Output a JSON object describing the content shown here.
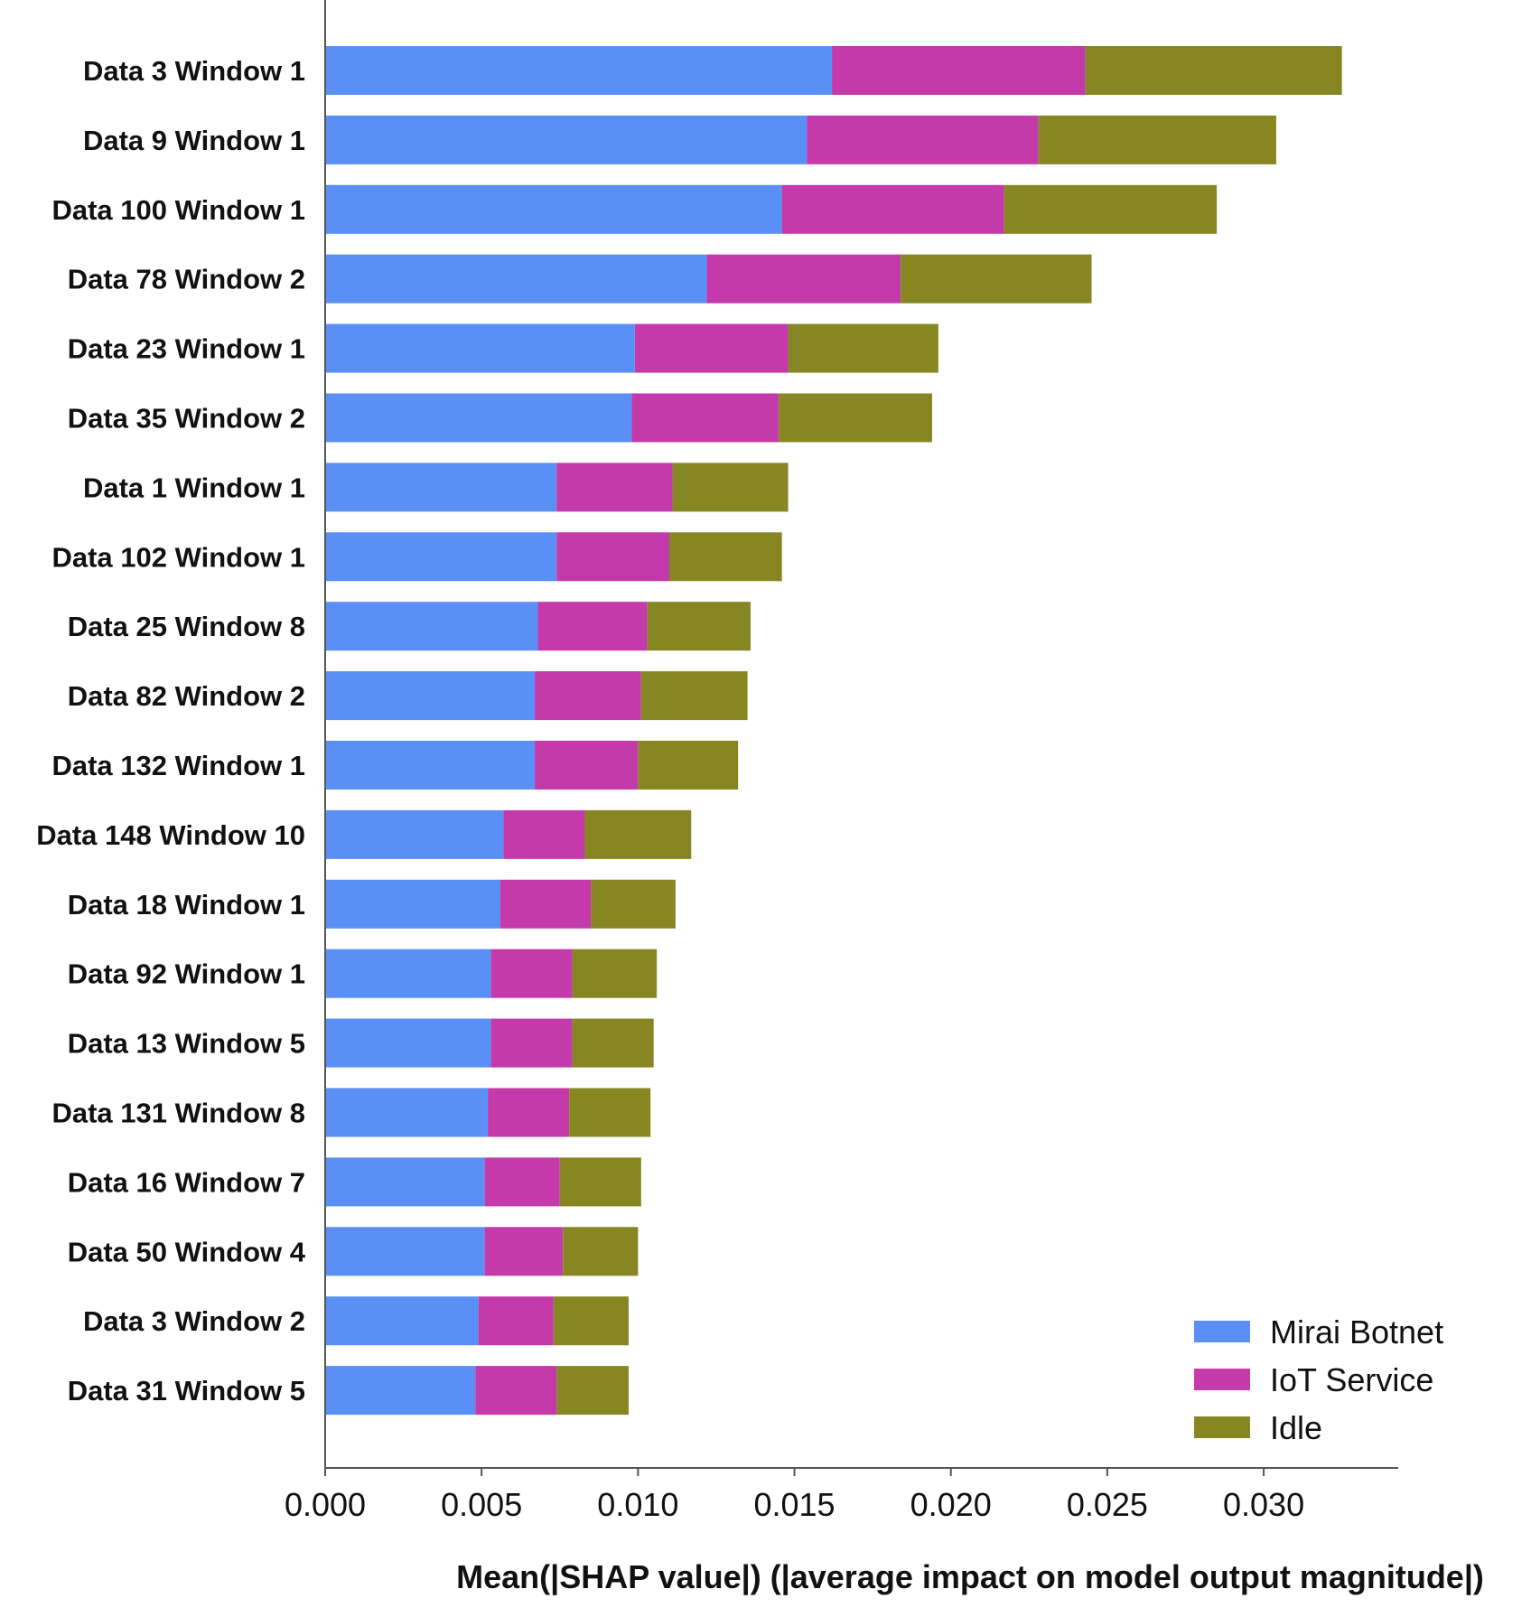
{
  "chart_data": {
    "type": "bar",
    "orientation": "horizontal",
    "stacked": true,
    "categories": [
      "Data 3 Window 1",
      "Data 9 Window 1",
      "Data 100 Window 1",
      "Data 78 Window 2",
      "Data 23 Window 1",
      "Data 35 Window 2",
      "Data 1 Window 1",
      "Data 102 Window 1",
      "Data 25 Window 8",
      "Data 82 Window 2",
      "Data 132 Window 1",
      "Data 148 Window 10",
      "Data 18 Window 1",
      "Data 92 Window 1",
      "Data 13 Window 5",
      "Data 131 Window 8",
      "Data 16 Window 7",
      "Data 50 Window 4",
      "Data 3 Window 2",
      "Data 31 Window 5"
    ],
    "series": [
      {
        "name": "Mirai Botnet",
        "color": "#5a8ff5",
        "values": [
          0.0162,
          0.0154,
          0.0146,
          0.0122,
          0.0099,
          0.0098,
          0.0074,
          0.0074,
          0.0068,
          0.0067,
          0.0067,
          0.0057,
          0.0056,
          0.0053,
          0.0053,
          0.0052,
          0.0051,
          0.0051,
          0.0049,
          0.0048
        ]
      },
      {
        "name": "IoT Service",
        "color": "#c43aab",
        "values": [
          0.0081,
          0.0074,
          0.0071,
          0.0062,
          0.0049,
          0.0047,
          0.0037,
          0.0036,
          0.0035,
          0.0034,
          0.0033,
          0.0026,
          0.0029,
          0.0026,
          0.0026,
          0.0026,
          0.0024,
          0.0025,
          0.0024,
          0.0026
        ]
      },
      {
        "name": "Idle",
        "color": "#868722",
        "values": [
          0.0082,
          0.0076,
          0.0068,
          0.0061,
          0.0048,
          0.0049,
          0.0037,
          0.0036,
          0.0033,
          0.0034,
          0.0032,
          0.0034,
          0.0027,
          0.0027,
          0.0026,
          0.0026,
          0.0026,
          0.0024,
          0.0024,
          0.0023
        ]
      }
    ],
    "xlim": [
      0.0,
      0.0343
    ],
    "xticks": [
      "0.000",
      "0.005",
      "0.010",
      "0.015",
      "0.020",
      "0.025",
      "0.030"
    ],
    "xtick_values": [
      0.0,
      0.005,
      0.01,
      0.015,
      0.02,
      0.025,
      0.03
    ],
    "xlabel": "Mean(|SHAP value|) (|average impact on model output magnitude|)",
    "ylabel": "",
    "title": "",
    "grid": false,
    "legend_position": "bottom-right"
  }
}
